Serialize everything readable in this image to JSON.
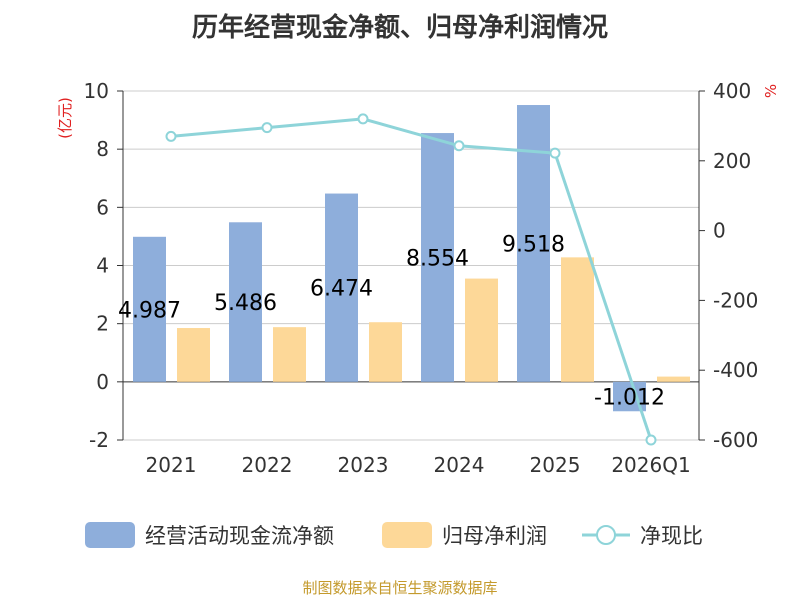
{
  "chart_data": {
    "type": "bar",
    "title": "历年经营现金净额、归母净利润情况",
    "categories": [
      "2021",
      "2022",
      "2023",
      "2024",
      "2025",
      "2026Q1"
    ],
    "series": [
      {
        "name": "经营活动现金流净额",
        "kind": "bar",
        "axis": "left",
        "color": "#8eaedb",
        "values": [
          4.987,
          5.486,
          6.474,
          8.554,
          9.518,
          -1.012
        ],
        "labels": [
          "4.987",
          "5.486",
          "6.474",
          "8.554",
          "9.518",
          "-1.012"
        ]
      },
      {
        "name": "归母净利润",
        "kind": "bar",
        "axis": "left",
        "color": "#fdd898",
        "values": [
          1.85,
          1.88,
          2.05,
          3.55,
          4.28,
          0.18
        ]
      },
      {
        "name": "净现比",
        "kind": "line",
        "axis": "right",
        "color": "#8ed4d9",
        "values": [
          270,
          295,
          320,
          243,
          222,
          -600
        ]
      }
    ],
    "left_axis": {
      "unit": "(亿元)",
      "min": -2,
      "max": 10,
      "ticks": [
        -2,
        0,
        2,
        4,
        6,
        8,
        10
      ]
    },
    "right_axis": {
      "unit": "%",
      "min": -600,
      "max": 400,
      "ticks": [
        -600,
        -400,
        -200,
        0,
        200,
        400
      ]
    },
    "grid": true,
    "legend": "bottom"
  },
  "source": "制图数据来自恒生聚源数据库"
}
